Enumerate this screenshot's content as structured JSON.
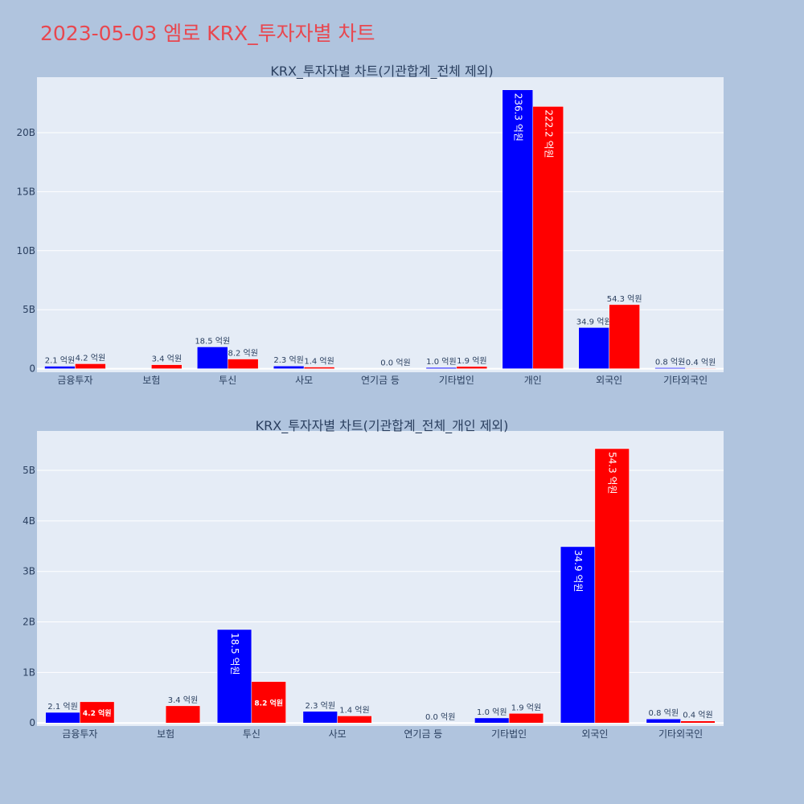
{
  "page": {
    "title": "2023-05-03 엠로 KRX_투자자별 차트",
    "title_color": "#e8474f",
    "background": "#b0c4de",
    "plot_background": "#e5ecf6"
  },
  "chart_data": [
    {
      "type": "bar",
      "title": "KRX_투자자별 차트(기관합계_전체 제외)",
      "categories": [
        "금융투자",
        "보험",
        "투신",
        "사모",
        "연기금 등",
        "기타법인",
        "개인",
        "외국인",
        "기타외국인"
      ],
      "series": [
        {
          "color": "#0000ff",
          "values": [
            210000000,
            0,
            1850000000,
            230000000,
            0,
            100000000,
            23630000000,
            3490000000,
            80000000
          ],
          "labels": [
            "2.1 억원",
            "",
            "18.5 억원",
            "2.3 억원",
            "",
            "1.0 억원",
            "236.3 억원",
            "34.9 억원",
            "0.8 억원"
          ]
        },
        {
          "color": "#ff0000",
          "values": [
            420000000,
            340000000,
            820000000,
            140000000,
            0,
            190000000,
            22220000000,
            5430000000,
            40000000
          ],
          "labels": [
            "4.2 억원",
            "3.4 억원",
            "8.2 억원",
            "1.4 억원",
            "0.0 억원",
            "1.9 억원",
            "222.2 억원",
            "54.3 억원",
            "0.4 억원"
          ]
        }
      ],
      "yticks": [
        0,
        5000000000,
        10000000000,
        15000000000,
        20000000000
      ],
      "ytick_labels": [
        "0",
        "5B",
        "10B",
        "15B",
        "20B"
      ],
      "ylim": [
        -300000000,
        24700000000
      ],
      "grid": true
    },
    {
      "type": "bar",
      "title": "KRX_투자자별 차트(기관합계_전체_개인 제외)",
      "categories": [
        "금융투자",
        "보험",
        "투신",
        "사모",
        "연기금 등",
        "기타법인",
        "외국인",
        "기타외국인"
      ],
      "series": [
        {
          "color": "#0000ff",
          "values": [
            210000000,
            0,
            1850000000,
            230000000,
            0,
            100000000,
            3490000000,
            80000000
          ],
          "labels": [
            "2.1 억원",
            "",
            "18.5 억원",
            "2.3 억원",
            "",
            "1.0 억원",
            "34.9 억원",
            "0.8 억원"
          ]
        },
        {
          "color": "#ff0000",
          "values": [
            420000000,
            340000000,
            820000000,
            140000000,
            0,
            190000000,
            5430000000,
            40000000
          ],
          "labels": [
            "4.2 억원",
            "3.4 억원",
            "8.2 억원",
            "1.4 억원",
            "0.0 억원",
            "1.9 억원",
            "54.3 억원",
            "0.4 억원"
          ]
        }
      ],
      "yticks": [
        0,
        1000000000,
        2000000000,
        3000000000,
        4000000000,
        5000000000
      ],
      "ytick_labels": [
        "0",
        "1B",
        "2B",
        "3B",
        "4B",
        "5B"
      ],
      "ylim": [
        -60000000,
        5780000000
      ],
      "grid": true
    }
  ]
}
